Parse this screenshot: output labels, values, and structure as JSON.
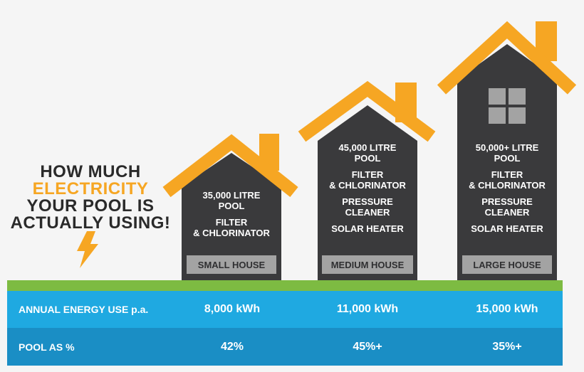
{
  "headline": {
    "line1": "HOW MUCH",
    "line2": "ELECTRICITY",
    "line3": "YOUR POOL IS",
    "line4": "ACTUALLY USING!"
  },
  "houses": [
    {
      "label": "SMALL HOUSE",
      "details": [
        "35,000 LITRE",
        "POOL",
        "",
        "FILTER",
        "& CHLORINATOR"
      ]
    },
    {
      "label": "MEDIUM HOUSE",
      "details": [
        "45,000 LITRE",
        "POOL",
        "",
        "FILTER",
        "& CHLORINATOR",
        "",
        "PRESSURE",
        "CLEANER",
        "",
        "SOLAR HEATER"
      ]
    },
    {
      "label": "LARGE HOUSE",
      "details": [
        "50,000+ LITRE",
        "POOL",
        "",
        "FILTER",
        "& CHLORINATOR",
        "",
        "PRESSURE",
        "CLEANER",
        "",
        "SOLAR HEATER"
      ]
    }
  ],
  "table": {
    "energy_label": "ANNUAL ENERGY USE p.a.",
    "energy_values": [
      "8,000 kWh",
      "11,000 kWh",
      "15,000 kWh"
    ],
    "pct_label": "POOL AS %",
    "pct_values": [
      "42%",
      "45%+",
      "35%+"
    ]
  },
  "colors": {
    "roof": "#f6a623",
    "house": "#3a3a3c",
    "label_bg": "#a3a3a3",
    "grass": "#7dbb42",
    "band_light": "#1fa9e1",
    "band_dark": "#1a8ec5",
    "text_dark": "#2a2a2a"
  },
  "icons": [
    "lightning-bolt-icon",
    "window-icon"
  ]
}
